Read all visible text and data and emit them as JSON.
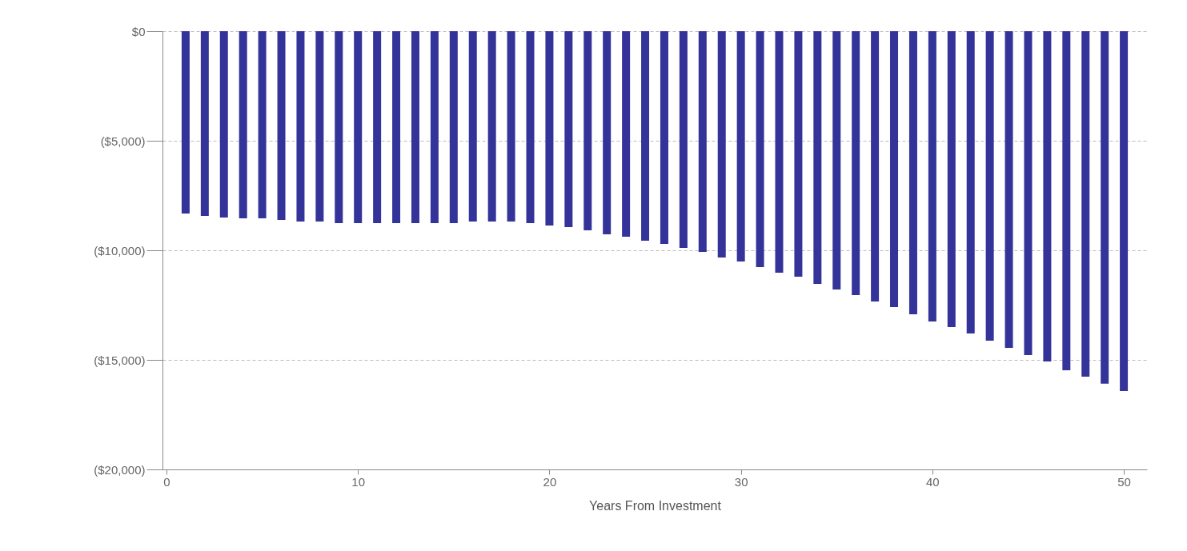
{
  "chart_data": {
    "type": "bar",
    "xlabel": "Years From Investment",
    "x": [
      1,
      2,
      3,
      4,
      5,
      6,
      7,
      8,
      9,
      10,
      11,
      12,
      13,
      14,
      15,
      16,
      17,
      18,
      19,
      20,
      21,
      22,
      23,
      24,
      25,
      26,
      27,
      28,
      29,
      30,
      31,
      32,
      33,
      34,
      35,
      36,
      37,
      38,
      39,
      40,
      41,
      42,
      43,
      44,
      45,
      46,
      47,
      48,
      49,
      50
    ],
    "series": [
      {
        "color": "#333399",
        "values": [
          -8320,
          -8430,
          -8500,
          -8540,
          -8540,
          -8610,
          -8690,
          -8690,
          -8760,
          -8760,
          -8760,
          -8760,
          -8760,
          -8760,
          -8760,
          -8690,
          -8690,
          -8690,
          -8760,
          -8870,
          -8940,
          -9090,
          -9270,
          -9380,
          -9560,
          -9710,
          -9890,
          -10070,
          -10330,
          -10510,
          -10770,
          -11020,
          -11200,
          -11530,
          -11790,
          -12040,
          -12340,
          -12590,
          -12920,
          -13250,
          -13500,
          -13800,
          -14120,
          -14450,
          -14780,
          -15070,
          -15470,
          -15770,
          -16090,
          -16420
        ]
      }
    ],
    "xlim": [
      0,
      51
    ],
    "xticks": [
      0,
      10,
      20,
      30,
      40,
      50
    ],
    "ylim": [
      -20000,
      0
    ],
    "yticks": [
      {
        "value": 0,
        "label": "$0"
      },
      {
        "value": -5000,
        "label": "($5,000)"
      },
      {
        "value": -10000,
        "label": "($10,000)"
      },
      {
        "value": -15000,
        "label": "($15,000)"
      },
      {
        "value": -20000,
        "label": "($20,000)"
      }
    ],
    "grid": "y"
  }
}
